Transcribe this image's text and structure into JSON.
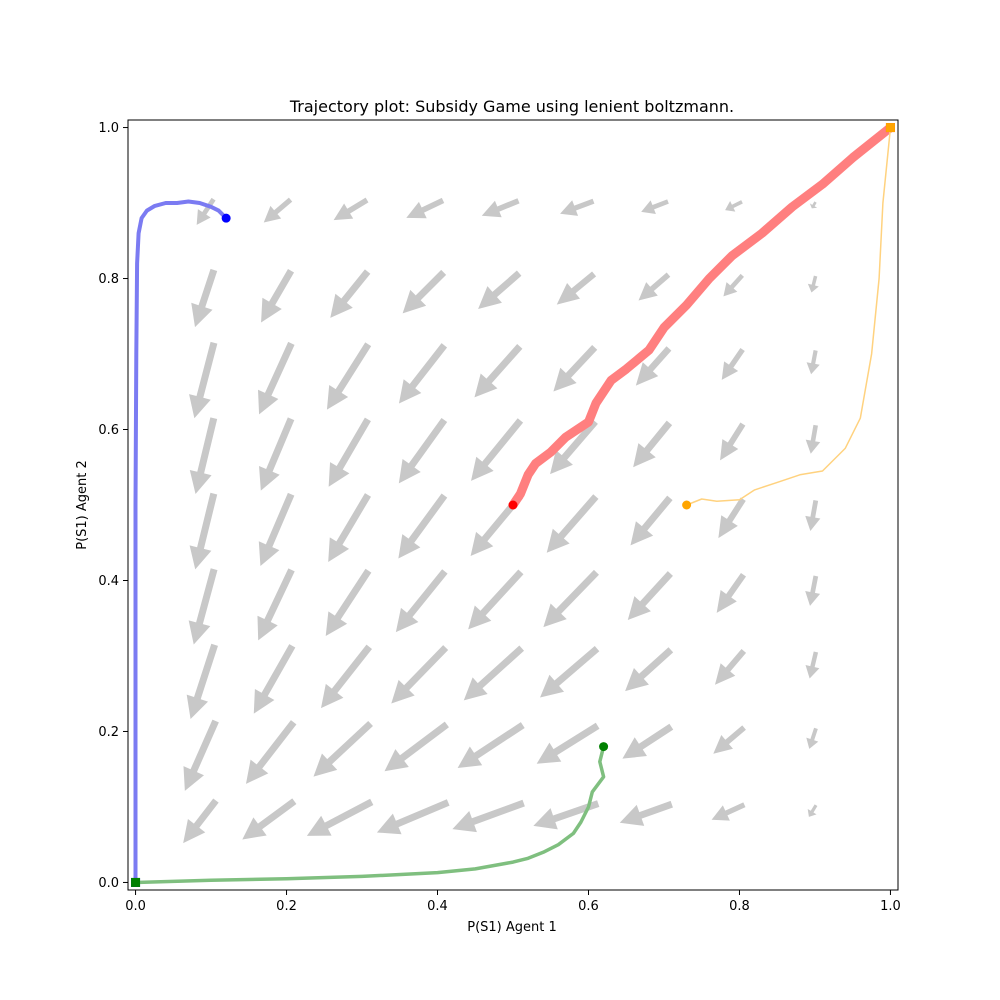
{
  "chart_data": {
    "type": "line",
    "title": "Trajectory plot: Subsidy Game using lenient boltzmann.",
    "xlabel": "P(S1) Agent 1",
    "ylabel": "P(S1) Agent 2",
    "xlim": [
      -0.01,
      1.01
    ],
    "ylim": [
      -0.01,
      1.01
    ],
    "xticks": [
      "0.0",
      "0.2",
      "0.4",
      "0.6",
      "0.8",
      "1.0"
    ],
    "yticks": [
      "0.0",
      "0.2",
      "0.4",
      "0.6",
      "0.8",
      "1.0"
    ],
    "grid": false,
    "colors": {
      "quiver": "#c8c8c8",
      "blue_line": "#7b7bf2",
      "blue_point": "#0000ff",
      "red_line": "#ff7f7f",
      "red_point": "#ff0000",
      "orange_line": "#ffd27f",
      "orange_point": "#ffa500",
      "green_line": "#7fbf7f",
      "green_point": "#008000"
    },
    "quiver_field": {
      "positions": [
        0.1,
        0.2,
        0.3,
        0.4,
        0.5,
        0.6,
        0.7,
        0.8,
        0.9
      ],
      "description_free": true
    },
    "series": [
      {
        "color_key": "blue",
        "start": [
          0.12,
          0.88
        ],
        "end": [
          0.0,
          0.0
        ],
        "points": [
          [
            0.12,
            0.88
          ],
          [
            0.11,
            0.89
          ],
          [
            0.1,
            0.895
          ],
          [
            0.085,
            0.9
          ],
          [
            0.07,
            0.902
          ],
          [
            0.055,
            0.9
          ],
          [
            0.04,
            0.9
          ],
          [
            0.025,
            0.896
          ],
          [
            0.015,
            0.89
          ],
          [
            0.008,
            0.88
          ],
          [
            0.004,
            0.86
          ],
          [
            0.002,
            0.82
          ],
          [
            0.001,
            0.7
          ],
          [
            0.0,
            0.5
          ],
          [
            0.0,
            0.2
          ],
          [
            0.0,
            0.0
          ]
        ]
      },
      {
        "color_key": "red",
        "start": [
          0.5,
          0.5
        ],
        "end": [
          1.0,
          1.0
        ],
        "points": [
          [
            0.5,
            0.5
          ],
          [
            0.51,
            0.515
          ],
          [
            0.52,
            0.54
          ],
          [
            0.53,
            0.555
          ],
          [
            0.55,
            0.57
          ],
          [
            0.57,
            0.59
          ],
          [
            0.6,
            0.61
          ],
          [
            0.61,
            0.635
          ],
          [
            0.63,
            0.665
          ],
          [
            0.65,
            0.68
          ],
          [
            0.68,
            0.705
          ],
          [
            0.7,
            0.735
          ],
          [
            0.73,
            0.765
          ],
          [
            0.76,
            0.8
          ],
          [
            0.79,
            0.83
          ],
          [
            0.83,
            0.86
          ],
          [
            0.87,
            0.895
          ],
          [
            0.91,
            0.925
          ],
          [
            0.95,
            0.96
          ],
          [
            1.0,
            1.0
          ]
        ]
      },
      {
        "color_key": "orange",
        "start": [
          0.73,
          0.5
        ],
        "end": [
          1.0,
          1.0
        ],
        "points": [
          [
            0.73,
            0.5
          ],
          [
            0.75,
            0.508
          ],
          [
            0.77,
            0.505
          ],
          [
            0.8,
            0.507
          ],
          [
            0.82,
            0.52
          ],
          [
            0.85,
            0.53
          ],
          [
            0.88,
            0.54
          ],
          [
            0.91,
            0.545
          ],
          [
            0.94,
            0.575
          ],
          [
            0.96,
            0.615
          ],
          [
            0.975,
            0.7
          ],
          [
            0.985,
            0.8
          ],
          [
            0.99,
            0.9
          ],
          [
            1.0,
            1.0
          ]
        ]
      },
      {
        "color_key": "green",
        "start": [
          0.62,
          0.18
        ],
        "end": [
          0.0,
          0.0
        ],
        "points": [
          [
            0.62,
            0.18
          ],
          [
            0.615,
            0.16
          ],
          [
            0.62,
            0.14
          ],
          [
            0.605,
            0.12
          ],
          [
            0.6,
            0.1
          ],
          [
            0.59,
            0.08
          ],
          [
            0.58,
            0.065
          ],
          [
            0.56,
            0.05
          ],
          [
            0.54,
            0.04
          ],
          [
            0.52,
            0.032
          ],
          [
            0.5,
            0.027
          ],
          [
            0.45,
            0.018
          ],
          [
            0.4,
            0.013
          ],
          [
            0.3,
            0.008
          ],
          [
            0.2,
            0.005
          ],
          [
            0.1,
            0.003
          ],
          [
            0.0,
            0.0
          ]
        ]
      }
    ]
  }
}
